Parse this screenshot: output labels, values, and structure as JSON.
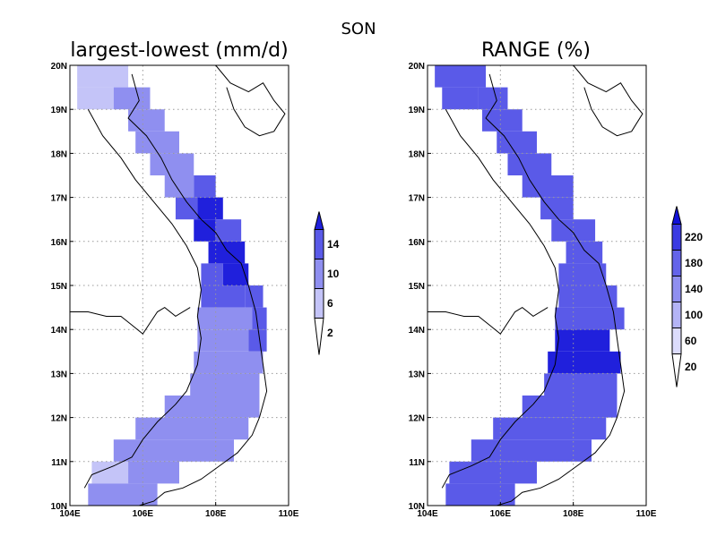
{
  "figure": {
    "season_label": "SON"
  },
  "colors": {
    "bin1": "#c4c4f8",
    "bin2": "#8f8ff0",
    "bin3": "#5a5ae8",
    "bin4": "#2020dc",
    "bin5": "#0000d0"
  },
  "panels": [
    {
      "id": "left",
      "title": "largest-lowest (mm/d)",
      "colorbar": {
        "labels": [
          "2",
          "6",
          "10",
          "14"
        ],
        "colors": [
          "#ffffff",
          "#c4c4f8",
          "#8f8ff0",
          "#5a5ae8",
          "#2020dc"
        ]
      }
    },
    {
      "id": "right",
      "title": "RANGE (%)",
      "colorbar": {
        "labels": [
          "20",
          "60",
          "100",
          "140",
          "180",
          "220"
        ],
        "colors": [
          "#ffffff",
          "#dcdcfc",
          "#b4b4f6",
          "#8f8ff0",
          "#6464ea",
          "#3a3ae2",
          "#1010d8"
        ]
      }
    }
  ],
  "axes": {
    "lon_ticks": [
      "104E",
      "106E",
      "108E",
      "110E"
    ],
    "lat_ticks": [
      "10N",
      "11N",
      "12N",
      "13N",
      "14N",
      "15N",
      "16N",
      "17N",
      "18N",
      "19N",
      "20N"
    ],
    "lon_range": [
      104,
      110
    ],
    "lat_range": [
      10,
      20
    ]
  },
  "map_data": {
    "left": {
      "rows": [
        {
          "lat": 19.5,
          "cells": [
            [
              104.2,
              105.6,
              1
            ]
          ]
        },
        {
          "lat": 19.0,
          "cells": [
            [
              104.2,
              105.2,
              1
            ],
            [
              105.2,
              106.2,
              2
            ]
          ]
        },
        {
          "lat": 18.5,
          "cells": [
            [
              105.6,
              106.6,
              2
            ]
          ]
        },
        {
          "lat": 18.0,
          "cells": [
            [
              105.8,
              107.0,
              2
            ]
          ]
        },
        {
          "lat": 17.5,
          "cells": [
            [
              106.2,
              107.4,
              2
            ]
          ]
        },
        {
          "lat": 17.0,
          "cells": [
            [
              106.6,
              107.4,
              2
            ],
            [
              107.4,
              108.0,
              3
            ]
          ]
        },
        {
          "lat": 16.5,
          "cells": [
            [
              106.9,
              107.5,
              3
            ],
            [
              107.5,
              108.2,
              4
            ]
          ]
        },
        {
          "lat": 16.0,
          "cells": [
            [
              107.4,
              108.0,
              4
            ],
            [
              108.0,
              108.7,
              3
            ]
          ]
        },
        {
          "lat": 15.5,
          "cells": [
            [
              107.8,
              108.8,
              4
            ]
          ]
        },
        {
          "lat": 15.0,
          "cells": [
            [
              107.6,
              108.2,
              3
            ],
            [
              108.2,
              108.9,
              4
            ]
          ]
        },
        {
          "lat": 14.5,
          "cells": [
            [
              107.6,
              108.8,
              3
            ],
            [
              108.8,
              109.3,
              3
            ]
          ]
        },
        {
          "lat": 14.0,
          "cells": [
            [
              107.5,
              109.0,
              2
            ],
            [
              109.0,
              109.4,
              3
            ]
          ]
        },
        {
          "lat": 13.5,
          "cells": [
            [
              107.5,
              108.9,
              2
            ],
            [
              108.9,
              109.4,
              3
            ]
          ]
        },
        {
          "lat": 13.0,
          "cells": [
            [
              107.4,
              109.3,
              2
            ]
          ]
        },
        {
          "lat": 12.5,
          "cells": [
            [
              107.3,
              109.2,
              2
            ]
          ]
        },
        {
          "lat": 12.0,
          "cells": [
            [
              106.6,
              109.2,
              2
            ]
          ]
        },
        {
          "lat": 11.5,
          "cells": [
            [
              105.8,
              108.9,
              2
            ]
          ]
        },
        {
          "lat": 11.0,
          "cells": [
            [
              105.2,
              107.0,
              2
            ],
            [
              107.0,
              108.5,
              2
            ]
          ]
        },
        {
          "lat": 10.5,
          "cells": [
            [
              104.6,
              105.6,
              1
            ],
            [
              105.6,
              107.0,
              2
            ]
          ]
        },
        {
          "lat": 10.0,
          "cells": [
            [
              104.5,
              106.4,
              2
            ]
          ]
        }
      ]
    },
    "right": {
      "rows": [
        {
          "lat": 19.5,
          "cells": [
            [
              104.2,
              105.6,
              3
            ]
          ]
        },
        {
          "lat": 19.0,
          "cells": [
            [
              104.4,
              105.4,
              3
            ],
            [
              105.4,
              106.2,
              3
            ]
          ]
        },
        {
          "lat": 18.5,
          "cells": [
            [
              105.5,
              106.6,
              3
            ]
          ]
        },
        {
          "lat": 18.0,
          "cells": [
            [
              105.9,
              107.0,
              3
            ]
          ]
        },
        {
          "lat": 17.5,
          "cells": [
            [
              106.2,
              107.4,
              3
            ]
          ]
        },
        {
          "lat": 17.0,
          "cells": [
            [
              106.6,
              108.0,
              3
            ]
          ]
        },
        {
          "lat": 16.5,
          "cells": [
            [
              107.1,
              108.0,
              3
            ]
          ]
        },
        {
          "lat": 16.0,
          "cells": [
            [
              107.4,
              108.6,
              3
            ]
          ]
        },
        {
          "lat": 15.5,
          "cells": [
            [
              107.8,
              108.8,
              3
            ]
          ]
        },
        {
          "lat": 15.0,
          "cells": [
            [
              107.6,
              108.9,
              3
            ]
          ]
        },
        {
          "lat": 14.5,
          "cells": [
            [
              107.6,
              109.2,
              3
            ]
          ]
        },
        {
          "lat": 14.0,
          "cells": [
            [
              107.5,
              109.4,
              3
            ]
          ]
        },
        {
          "lat": 13.5,
          "cells": [
            [
              107.5,
              109.0,
              4
            ]
          ]
        },
        {
          "lat": 13.0,
          "cells": [
            [
              107.3,
              109.3,
              4
            ]
          ]
        },
        {
          "lat": 12.5,
          "cells": [
            [
              107.2,
              109.2,
              3
            ]
          ]
        },
        {
          "lat": 12.0,
          "cells": [
            [
              106.6,
              109.2,
              3
            ]
          ]
        },
        {
          "lat": 11.5,
          "cells": [
            [
              105.8,
              108.9,
              3
            ]
          ]
        },
        {
          "lat": 11.0,
          "cells": [
            [
              105.2,
              108.5,
              3
            ]
          ]
        },
        {
          "lat": 10.5,
          "cells": [
            [
              104.6,
              107.0,
              3
            ]
          ]
        },
        {
          "lat": 10.0,
          "cells": [
            [
              104.5,
              106.4,
              3
            ]
          ]
        }
      ]
    }
  }
}
